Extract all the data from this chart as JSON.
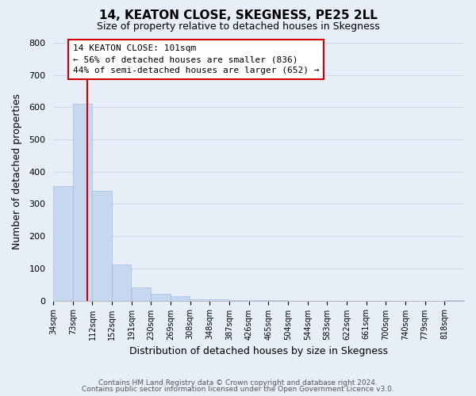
{
  "title": "14, KEATON CLOSE, SKEGNESS, PE25 2LL",
  "subtitle": "Size of property relative to detached houses in Skegness",
  "xlabel": "Distribution of detached houses by size in Skegness",
  "ylabel": "Number of detached properties",
  "bin_labels": [
    "34sqm",
    "73sqm",
    "112sqm",
    "152sqm",
    "191sqm",
    "230sqm",
    "269sqm",
    "308sqm",
    "348sqm",
    "387sqm",
    "426sqm",
    "465sqm",
    "504sqm",
    "544sqm",
    "583sqm",
    "622sqm",
    "661sqm",
    "700sqm",
    "740sqm",
    "779sqm",
    "818sqm"
  ],
  "bar_heights": [
    355,
    610,
    340,
    113,
    40,
    22,
    13,
    5,
    5,
    2,
    2,
    1,
    0,
    0,
    0,
    0,
    0,
    0,
    0,
    0,
    2
  ],
  "bar_color": "#c5d8f0",
  "bar_edge_color": "#a0bce0",
  "red_line_color": "#cc0000",
  "ylim": [
    0,
    800
  ],
  "yticks": [
    0,
    100,
    200,
    300,
    400,
    500,
    600,
    700,
    800
  ],
  "annotation_title": "14 KEATON CLOSE: 101sqm",
  "annotation_line1": "← 56% of detached houses are smaller (836)",
  "annotation_line2": "44% of semi-detached houses are larger (652) →",
  "annotation_box_color": "#ffffff",
  "annotation_box_edge": "#cc0000",
  "grid_color": "#d0d8e8",
  "background_color": "#e8eef8",
  "footer_line1": "Contains HM Land Registry data © Crown copyright and database right 2024.",
  "footer_line2": "Contains public sector information licensed under the Open Government Licence v3.0.",
  "bin_width": 39
}
